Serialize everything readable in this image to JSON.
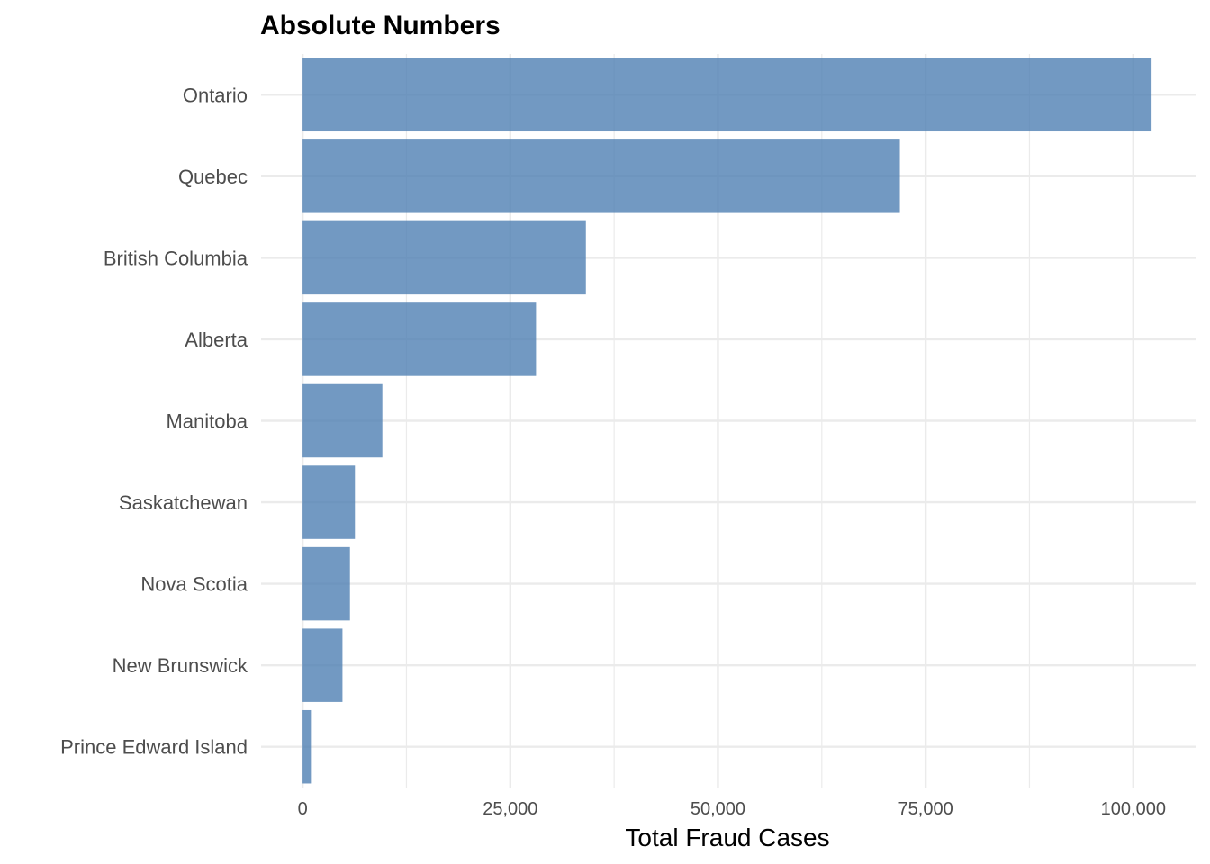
{
  "chart_data": {
    "type": "bar",
    "orientation": "horizontal",
    "title": "Absolute Numbers",
    "xlabel": "Total Fraud Cases",
    "ylabel": "",
    "categories": [
      "Ontario",
      "Quebec",
      "British Columbia",
      "Alberta",
      "Manitoba",
      "Saskatchewan",
      "Nova Scotia",
      "New Brunswick",
      "Prince Edward Island"
    ],
    "values": [
      102200,
      71900,
      34100,
      28100,
      9600,
      6300,
      5700,
      4800,
      1000
    ],
    "xlim": [
      -5000,
      107500
    ],
    "xticks": [
      0,
      25000,
      50000,
      75000,
      100000
    ],
    "xtick_labels": [
      "0",
      "25,000",
      "50,000",
      "75,000",
      "100,000"
    ],
    "grid": true,
    "bar_color": "#4f80b3",
    "bar_opacity": 0.8,
    "grid_color": "#ebebeb"
  }
}
